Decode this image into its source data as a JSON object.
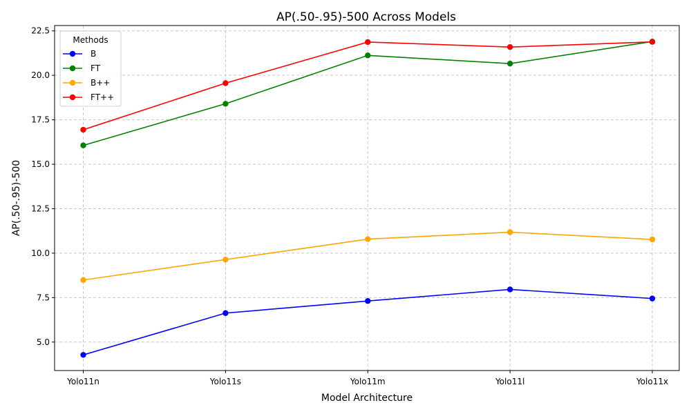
{
  "chart_data": {
    "type": "line",
    "title": "AP(.50-.95)-500 Across Models",
    "xlabel": "Model Architecture",
    "ylabel": "AP(.50-.95)-500",
    "categories": [
      "Yolo11n",
      "Yolo11s",
      "Yolo11m",
      "Yolo11l",
      "Yolo11x"
    ],
    "ylim": [
      3.4,
      22.8
    ],
    "yticks": [
      5.0,
      7.5,
      10.0,
      12.5,
      15.0,
      17.5,
      20.0,
      22.5
    ],
    "ytick_labels": [
      "5.0",
      "7.5",
      "10.0",
      "12.5",
      "15.0",
      "17.5",
      "20.0",
      "22.5"
    ],
    "grid": true,
    "grid_style": "dashed",
    "legend": {
      "title": "Methods",
      "placement": "top-left"
    },
    "series": [
      {
        "name": "B",
        "color": "#0000ff",
        "values": [
          4.28,
          6.63,
          7.31,
          7.96,
          7.45
        ]
      },
      {
        "name": "FT",
        "color": "#008000",
        "values": [
          16.06,
          18.4,
          21.12,
          20.66,
          21.9
        ]
      },
      {
        "name": "B++",
        "color": "#ffa500",
        "values": [
          8.49,
          9.64,
          10.79,
          11.18,
          10.77
        ]
      },
      {
        "name": "FT++",
        "color": "#ff0000",
        "values": [
          16.94,
          19.56,
          21.87,
          21.59,
          21.88
        ]
      }
    ]
  }
}
